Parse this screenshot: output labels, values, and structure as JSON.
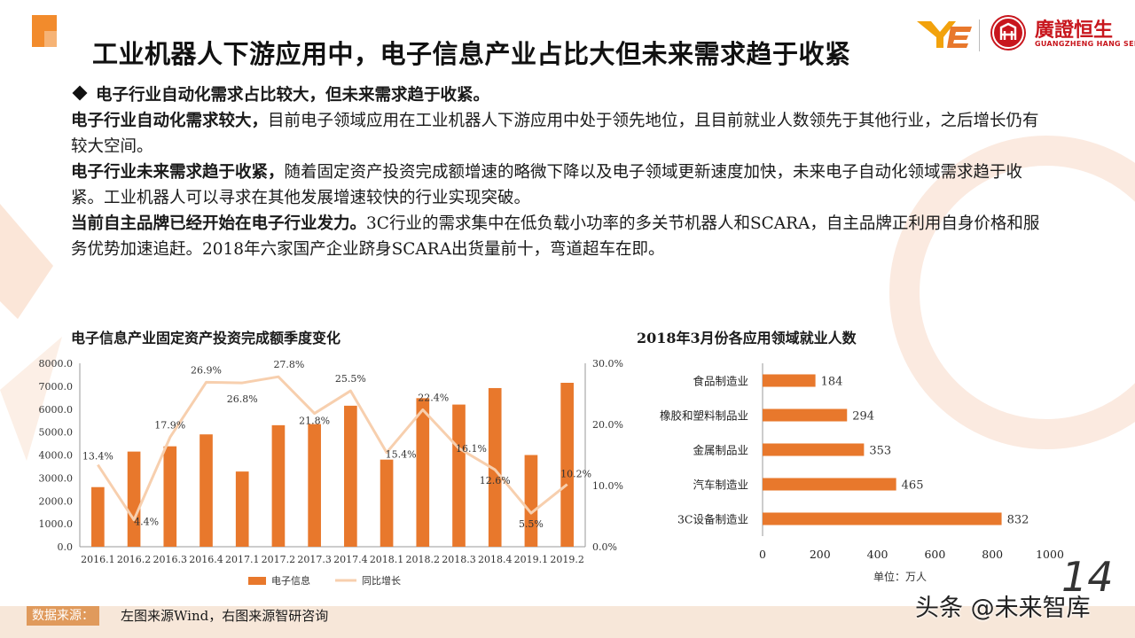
{
  "slide": {
    "title": "工业机器人下游应用中，电子信息产业占比大但未来需求趋于收紧",
    "page_number": "14"
  },
  "logo": {
    "ye_text": "YE",
    "name_cn": "廣證恒生",
    "name_en": "GUANGZHENG HANG SENG",
    "seal_text": "恒"
  },
  "body": {
    "headline": "电子行业自动化需求占比较大，但未来需求趋于收紧。",
    "p1_bold": "电子行业自动化需求较大，",
    "p1_text": "目前电子领域应用在工业机器人下游应用中处于领先地位，且目前就业人数领先于其他行业，之后增长仍有较大空间。",
    "p2_bold": "电子行业未来需求趋于收紧，",
    "p2_text": "随着固定资产投资完成额增速的略微下降以及电子领域更新速度加快，未来电子自动化领域需求趋于收紧。工业机器人可以寻求在其他发展增速较快的行业实现突破。",
    "p3_bold": "当前自主品牌已经开始在电子行业发力。",
    "p3_text": "3C行业的需求集中在低负载小功率的多关节机器人和SCARA，自主品牌正利用自身价格和服务优势加速追赶。2018年六家国产企业跻身SCARA出货量前十，弯道超车在即。"
  },
  "chart_data": [
    {
      "type": "bar",
      "title": "电子信息产业固定资产投资完成额季度变化",
      "categories": [
        "2016.1",
        "2016.2",
        "2016.3",
        "2016.4",
        "2017.1",
        "2017.2",
        "2017.3",
        "2017.4",
        "2018.1",
        "2018.2",
        "2018.3",
        "2018.4",
        "2019.1",
        "2019.2"
      ],
      "series": [
        {
          "name": "电子信息",
          "type": "bar",
          "axis": "left",
          "color": "#e8782c",
          "values": [
            2600,
            4150,
            4380,
            4900,
            3280,
            5300,
            5350,
            6150,
            3800,
            6480,
            6200,
            6920,
            4000,
            7150
          ]
        },
        {
          "name": "同比增长",
          "type": "line",
          "axis": "right",
          "color": "#f7cfae",
          "values": [
            13.4,
            4.4,
            17.9,
            26.9,
            26.8,
            27.8,
            21.8,
            25.5,
            15.4,
            22.4,
            16.1,
            12.6,
            5.5,
            10.2
          ],
          "labels": [
            "13.4%",
            "4.4%",
            "17.9%",
            "26.9%",
            "26.8%",
            "27.8%",
            "21.8%",
            "25.5%",
            "15.4%",
            "22.4%",
            "16.1%",
            "12.6%",
            "5.5%",
            "10.2%"
          ]
        }
      ],
      "y_left": {
        "min": 0,
        "max": 8000,
        "ticks": [
          "0.0",
          "1000.0",
          "2000.0",
          "3000.0",
          "4000.0",
          "5000.0",
          "6000.0",
          "7000.0",
          "8000.0"
        ]
      },
      "y_right": {
        "min": 0,
        "max": 30,
        "ticks": [
          "0.0%",
          "10.0%",
          "20.0%",
          "30.0%"
        ]
      },
      "legend_position": "bottom",
      "grid": false
    },
    {
      "type": "bar",
      "orientation": "horizontal",
      "title": "2018年3月份各应用领域就业人数",
      "categories": [
        "食品制造业",
        "橡胶和塑料制品业",
        "金属制品业",
        "汽车制造业",
        "3C设备制造业"
      ],
      "values": [
        184,
        294,
        353,
        465,
        832
      ],
      "value_labels": [
        "184",
        "294",
        "353",
        "465",
        "832"
      ],
      "color": "#e8782c",
      "xlim": [
        0,
        1000
      ],
      "x_ticks": [
        "0",
        "200",
        "400",
        "600",
        "800",
        "1000"
      ],
      "unit_note": "单位：万人",
      "grid": false
    }
  ],
  "footer": {
    "source_label": "数据来源：",
    "source_text": "左图来源Wind，右图来源智研咨询",
    "watermark": "头条 @未来智库"
  },
  "colors": {
    "accent": "#e8782c",
    "line": "#f7cfae",
    "brand_red": "#c8161d"
  }
}
